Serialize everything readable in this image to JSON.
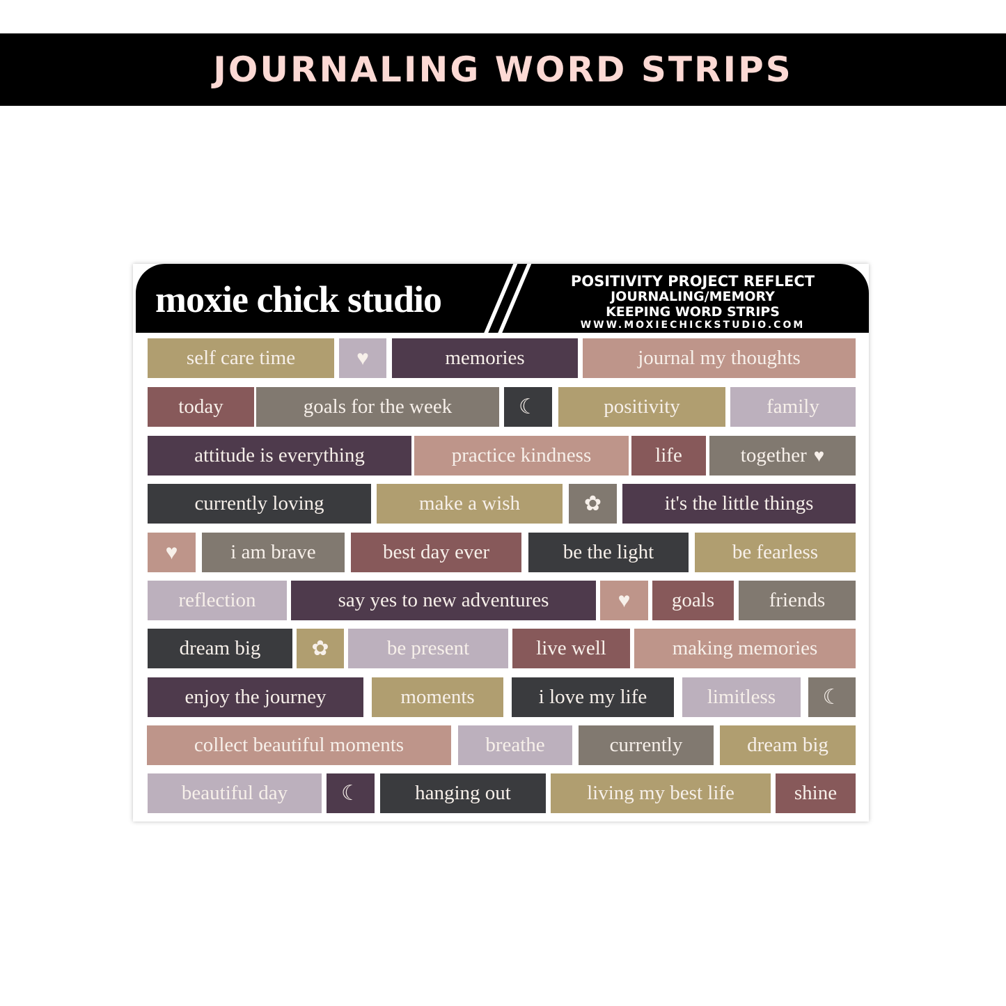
{
  "banner_title": "JOURNALING WORD STRIPS",
  "sheet": {
    "brand": "moxie chick studio",
    "info_line1": "POSITIVITY PROJECT REFLECT",
    "info_line2": "JOURNALING/MEMORY",
    "info_line3": "KEEPING WORD STRIPS",
    "url": "WWW.MOXIECHICKSTUDIO.COM"
  },
  "colors": {
    "gold": "#B09E70",
    "lilac": "#BCB0BD",
    "plum": "#4E3A4C",
    "rose": "#BE958A",
    "maroon": "#87595A",
    "taupe": "#817970",
    "charcoal": "#3A3B3E",
    "text": "#F7F0EA",
    "band_text": "#FCD9D4"
  },
  "icons": {
    "heart-icon": "♥",
    "moon-icon": "☾",
    "flower-icon": "✿"
  },
  "rows": [
    [
      {
        "label": "self care time",
        "color": "gold"
      },
      {
        "label": "",
        "color": "lilac",
        "icon": "heart-icon"
      },
      {
        "label": "memories",
        "color": "plum"
      },
      {
        "label": "journal my thoughts",
        "color": "rose"
      }
    ],
    [
      {
        "label": "today",
        "color": "maroon"
      },
      {
        "label": "goals for the week",
        "color": "taupe"
      },
      {
        "label": "",
        "color": "charcoal",
        "icon": "moon-icon"
      },
      {
        "label": "positivity",
        "color": "gold"
      },
      {
        "label": "family",
        "color": "lilac"
      }
    ],
    [
      {
        "label": "attitude is everything",
        "color": "plum"
      },
      {
        "label": "practice kindness",
        "color": "rose"
      },
      {
        "label": "life",
        "color": "maroon"
      },
      {
        "label": "together",
        "color": "taupe",
        "icon": "heart-icon"
      }
    ],
    [
      {
        "label": "currently loving",
        "color": "charcoal"
      },
      {
        "label": "make a wish",
        "color": "gold"
      },
      {
        "label": "",
        "color": "taupe",
        "icon": "flower-icon"
      },
      {
        "label": "it's the little things",
        "color": "plum"
      }
    ],
    [
      {
        "label": "",
        "color": "rose",
        "icon": "heart-icon"
      },
      {
        "label": "i am brave",
        "color": "taupe"
      },
      {
        "label": "best day ever",
        "color": "maroon"
      },
      {
        "label": "be the light",
        "color": "charcoal"
      },
      {
        "label": "be fearless",
        "color": "gold"
      }
    ],
    [
      {
        "label": "reflection",
        "color": "lilac"
      },
      {
        "label": "say yes to new adventures",
        "color": "plum"
      },
      {
        "label": "",
        "color": "rose",
        "icon": "heart-icon"
      },
      {
        "label": "goals",
        "color": "maroon"
      },
      {
        "label": "friends",
        "color": "taupe"
      }
    ],
    [
      {
        "label": "dream big",
        "color": "charcoal"
      },
      {
        "label": "",
        "color": "gold",
        "icon": "flower-icon"
      },
      {
        "label": "be present",
        "color": "lilac"
      },
      {
        "label": "live well",
        "color": "maroon"
      },
      {
        "label": "making memories",
        "color": "rose"
      }
    ],
    [
      {
        "label": "enjoy the journey",
        "color": "plum"
      },
      {
        "label": "moments",
        "color": "gold"
      },
      {
        "label": "i love my life",
        "color": "charcoal"
      },
      {
        "label": "limitless",
        "color": "lilac"
      },
      {
        "label": "",
        "color": "taupe",
        "icon": "moon-icon"
      }
    ],
    [
      {
        "label": "collect beautiful moments",
        "color": "rose"
      },
      {
        "label": "breathe",
        "color": "lilac"
      },
      {
        "label": "currently",
        "color": "taupe"
      },
      {
        "label": "dream big",
        "color": "gold"
      }
    ],
    [
      {
        "label": "beautiful day",
        "color": "lilac"
      },
      {
        "label": "",
        "color": "plum",
        "icon": "moon-icon"
      },
      {
        "label": "hanging out",
        "color": "charcoal"
      },
      {
        "label": "living my best life",
        "color": "gold"
      },
      {
        "label": "shine",
        "color": "maroon"
      }
    ]
  ]
}
